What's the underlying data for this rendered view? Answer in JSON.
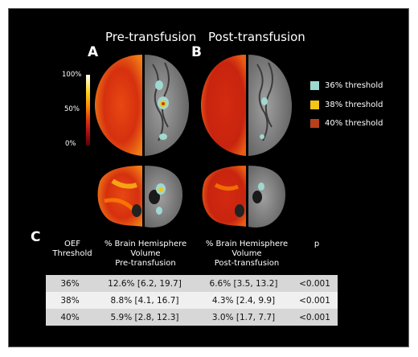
{
  "panels": {
    "pre_title": "Pre-transfusion",
    "post_title": "Post-transfusion",
    "letter_a": "A",
    "letter_b": "B",
    "letter_c": "C"
  },
  "colorbar": {
    "top": "100%",
    "mid": "50%",
    "bottom": "0%"
  },
  "legend": [
    {
      "label": "36% threshold",
      "color": "#9fd8d0"
    },
    {
      "label": "38% threshold",
      "color": "#f2c516"
    },
    {
      "label": "40% threshold",
      "color": "#b8401c"
    }
  ],
  "table": {
    "headers": {
      "col1": [
        "OEF",
        "Threshold"
      ],
      "col2": [
        "% Brain Hemisphere",
        "Volume",
        "Pre-transfusion"
      ],
      "col3": [
        "% Brain Hemisphere",
        "Volume",
        "Post-transfusion"
      ],
      "col4": [
        "p"
      ]
    },
    "rows": [
      {
        "threshold": "36%",
        "pre": "12.6% [6.2, 19.7]",
        "post": "6.6% [3.5, 13.2]",
        "p": "<0.001"
      },
      {
        "threshold": "38%",
        "pre": "8.8% [4.1, 16.7]",
        "post": "4.3% [2.4, 9.9]",
        "p": "<0.001"
      },
      {
        "threshold": "40%",
        "pre": "5.9% [2.8, 12.3]",
        "post": "3.0% [1.7, 7.7]",
        "p": "<0.001"
      }
    ]
  }
}
